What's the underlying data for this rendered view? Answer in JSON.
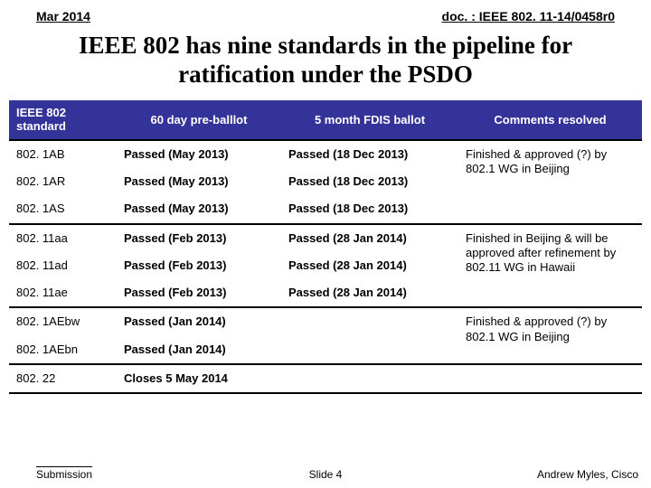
{
  "header": {
    "date": "Mar 2014",
    "doc": "doc. : IEEE 802. 11-14/0458r0"
  },
  "title": "IEEE 802 has nine standards in the pipeline for ratification under the PSDO",
  "table": {
    "header_bg": "#333399",
    "header_fg": "#ffffff",
    "columns": [
      "IEEE 802 standard",
      "60 day pre-balllot",
      "5 month FDIS ballot",
      "Comments resolved"
    ],
    "groups": [
      {
        "comment": "Finished & approved (?) by 802.1 WG in Beijing",
        "rows": [
          {
            "std": "802. 1AB",
            "pre": "Passed (May 2013)",
            "fdis": "Passed (18 Dec 2013)"
          },
          {
            "std": "802. 1AR",
            "pre": "Passed (May 2013)",
            "fdis": "Passed (18 Dec 2013)"
          },
          {
            "std": "802. 1AS",
            "pre": "Passed (May 2013)",
            "fdis": "Passed (18 Dec 2013)"
          }
        ]
      },
      {
        "comment": "Finished in Beijing & will be approved after refinement by 802.11 WG in Hawaii",
        "rows": [
          {
            "std": "802. 11aa",
            "pre": "Passed (Feb 2013)",
            "fdis": "Passed (28 Jan 2014)"
          },
          {
            "std": "802. 11ad",
            "pre": "Passed (Feb 2013)",
            "fdis": "Passed (28 Jan 2014)"
          },
          {
            "std": "802. 11ae",
            "pre": "Passed (Feb 2013)",
            "fdis": "Passed (28 Jan 2014)"
          }
        ]
      },
      {
        "comment": "Finished & approved (?) by 802.1 WG in Beijing",
        "rows": [
          {
            "std": "802. 1AEbw",
            "pre": "Passed (Jan 2014)",
            "fdis": ""
          },
          {
            "std": "802. 1AEbn",
            "pre": "Passed (Jan 2014)",
            "fdis": ""
          }
        ]
      },
      {
        "comment": "",
        "rows": [
          {
            "std": "802. 22",
            "pre": "Closes 5 May 2014",
            "fdis": ""
          }
        ]
      }
    ]
  },
  "footer": {
    "left": "Submission",
    "center": "Slide 4",
    "right": "Andrew Myles, Cisco"
  }
}
